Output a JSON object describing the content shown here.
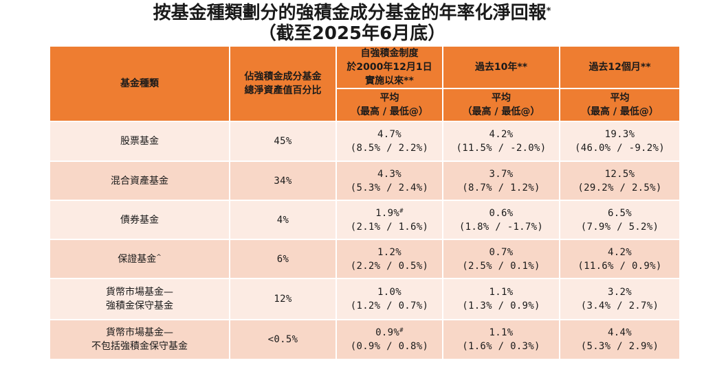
{
  "title": {
    "line1": "按基金種類劃分的強積金成分基金的年率化淨回報",
    "line1_mark": "*",
    "line2": "（截至2025年6月底）"
  },
  "header": {
    "fund_type": "基金種類",
    "share_line1": "佔強積金成分基金",
    "share_line2": "總淨資產值百分比",
    "since_line1": "自強積金制度",
    "since_line2": "於2000年12月1日",
    "since_line3": "實施以來**",
    "past10": "過去10年**",
    "past12": "過去12個月**",
    "avg": "平均",
    "hilo": "（最高 / 最低@）"
  },
  "rows": [
    {
      "name1": "股票基金",
      "name2": "",
      "name_mark": "",
      "share": "45%",
      "since_avg": "4.7%",
      "since_mark": "",
      "since_range": "(8.5% / 2.2%)",
      "y10_avg": "4.2%",
      "y10_range": "(11.5% / -2.0%)",
      "m12_avg": "19.3%",
      "m12_range": "(46.0% / -9.2%)"
    },
    {
      "name1": "混合資產基金",
      "name2": "",
      "name_mark": "",
      "share": "34%",
      "since_avg": "4.3%",
      "since_mark": "",
      "since_range": "(5.3% / 2.4%)",
      "y10_avg": "3.7%",
      "y10_range": "(8.7% / 1.2%)",
      "m12_avg": "12.5%",
      "m12_range": "(29.2% / 2.5%)"
    },
    {
      "name1": "債券基金",
      "name2": "",
      "name_mark": "",
      "share": "4%",
      "since_avg": "1.9%",
      "since_mark": "#",
      "since_range": "(2.1% / 1.6%)",
      "y10_avg": "0.6%",
      "y10_range": "(1.8% / -1.7%)",
      "m12_avg": "6.5%",
      "m12_range": "(7.9% / 5.2%)"
    },
    {
      "name1": "保證基金",
      "name2": "",
      "name_mark": "^",
      "share": "6%",
      "since_avg": "1.2%",
      "since_mark": "",
      "since_range": "(2.2% / 0.5%)",
      "y10_avg": "0.7%",
      "y10_range": "(2.5% / 0.1%)",
      "m12_avg": "4.2%",
      "m12_range": "(11.6% / 0.9%)"
    },
    {
      "name1": "貨幣市場基金—",
      "name2": "強積金保守基金",
      "name_mark": "",
      "share": "12%",
      "since_avg": "1.0%",
      "since_mark": "",
      "since_range": "(1.2% / 0.7%)",
      "y10_avg": "1.1%",
      "y10_range": "(1.3% / 0.9%)",
      "m12_avg": "3.2%",
      "m12_range": "(3.4% / 2.7%)"
    },
    {
      "name1": "貨幣市場基金—",
      "name2": "不包括強積金保守基金",
      "name_mark": "",
      "share": "<0.5%",
      "since_avg": "0.9%",
      "since_mark": "#",
      "since_range": "(0.9% / 0.8%)",
      "y10_avg": "1.1%",
      "y10_range": "(1.6% / 0.3%)",
      "m12_avg": "4.4%",
      "m12_range": "(5.3% / 2.9%)"
    }
  ]
}
